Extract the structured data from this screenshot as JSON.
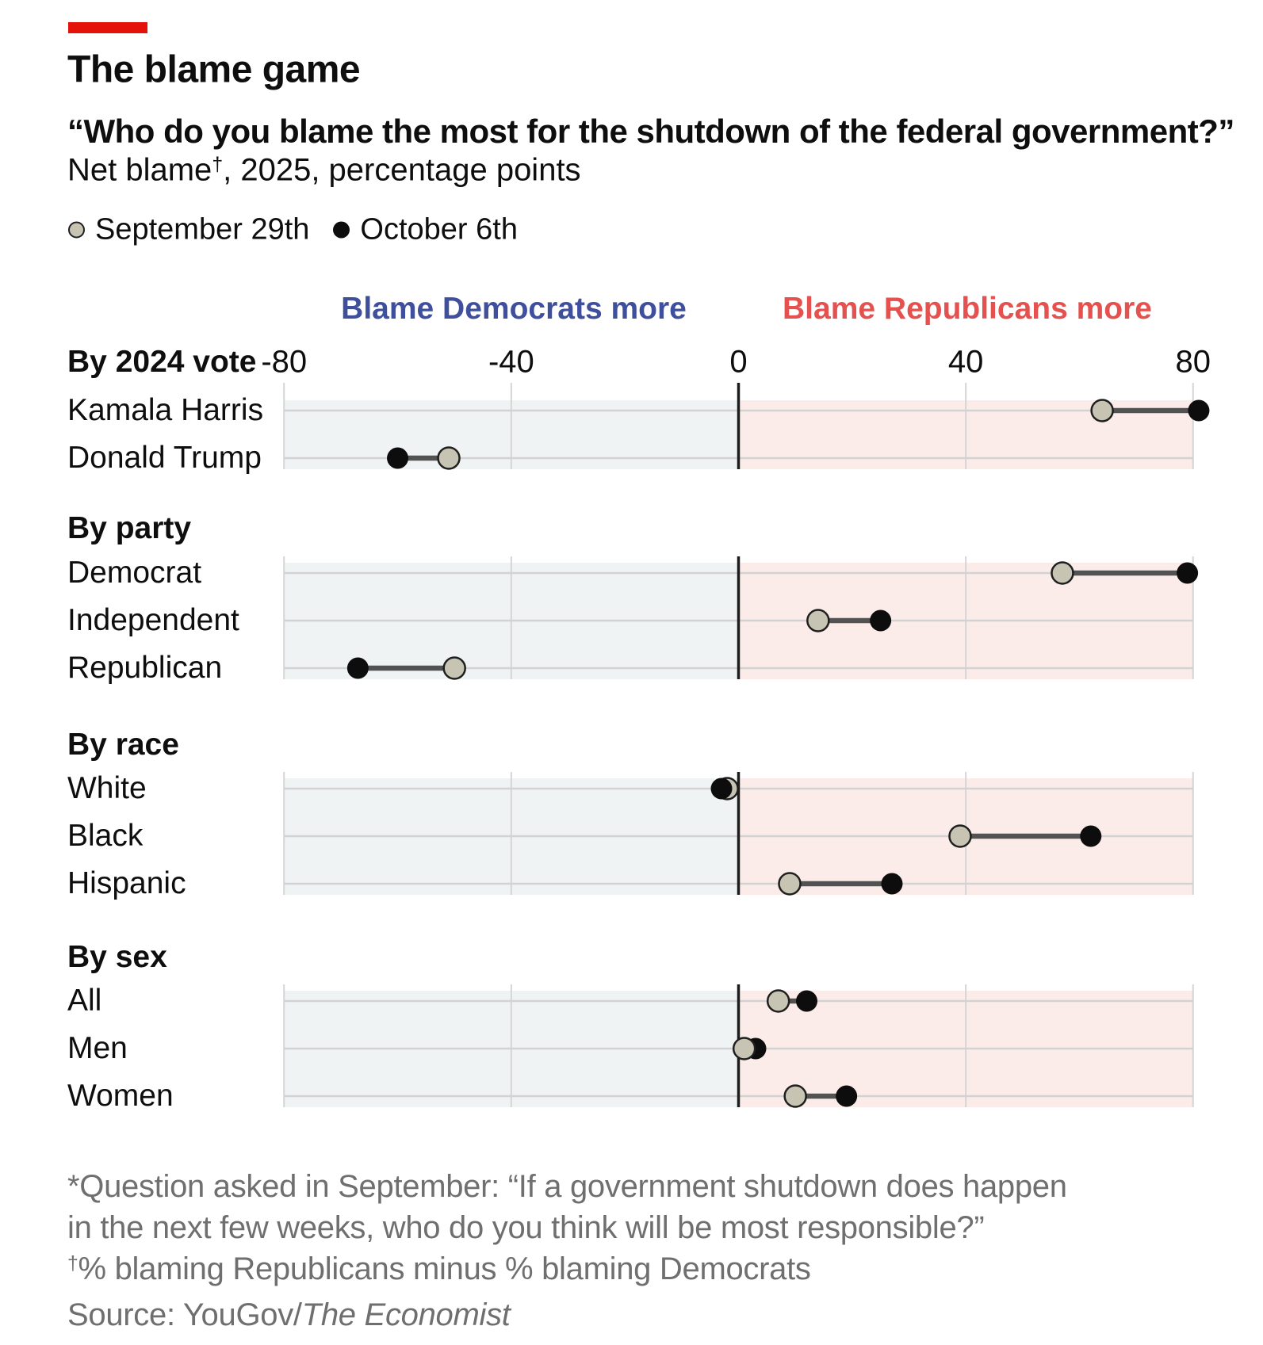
{
  "header": {
    "title": "The blame game",
    "subtitle": "“Who do you blame the most for the shutdown of the federal government?”",
    "dek_prefix": "Net blame",
    "dek_dagger": "†",
    "dek_suffix": ", 2025, percentage points"
  },
  "legend": {
    "sep29": {
      "label": "September 29th"
    },
    "oct6": {
      "label": "October 6th"
    }
  },
  "chart_data": {
    "type": "dumbbell",
    "title": "The blame game",
    "subtitle": "“Who do you blame the most for the shutdown of the federal government?” Net blame, 2025, percentage points",
    "series": [
      "September 29th",
      "October 6th"
    ],
    "x_axis": {
      "ticks": [
        -80,
        -40,
        0,
        40,
        80
      ],
      "tick_labels": [
        "-80",
        "-40",
        "0",
        "40",
        "80"
      ],
      "range": [
        -80,
        80
      ],
      "grid": true
    },
    "headers": {
      "left": {
        "label": "Blame Democrats more",
        "color": "#3E4F9E"
      },
      "right": {
        "label": "Blame Republicans more",
        "color": "#E4514E"
      }
    },
    "groups": [
      {
        "heading": "By 2024 vote",
        "rows": [
          {
            "label": "Kamala Harris",
            "sep29": 64,
            "oct6": 81
          },
          {
            "label": "Donald Trump",
            "sep29": -51,
            "oct6": -60
          }
        ]
      },
      {
        "heading": "By party",
        "rows": [
          {
            "label": "Democrat",
            "sep29": 57,
            "oct6": 79
          },
          {
            "label": "Independent",
            "sep29": 14,
            "oct6": 25
          },
          {
            "label": "Republican",
            "sep29": -50,
            "oct6": -67
          }
        ]
      },
      {
        "heading": "By race",
        "rows": [
          {
            "label": "White",
            "sep29": -2,
            "oct6": -3
          },
          {
            "label": "Black",
            "sep29": 39,
            "oct6": 62
          },
          {
            "label": "Hispanic",
            "sep29": 9,
            "oct6": 27
          }
        ]
      },
      {
        "heading": "By sex",
        "rows": [
          {
            "label": "All",
            "sep29": 7,
            "oct6": 12
          },
          {
            "label": "Men",
            "sep29": 1,
            "oct6": 3,
            "sept_on_top": true
          },
          {
            "label": "Women",
            "sep29": 10,
            "oct6": 19
          }
        ]
      }
    ]
  },
  "footnotes": {
    "line1": "*Question asked in September: “If a government shutdown does happen",
    "line2": "in the next few weeks, who do you think will be most responsible?”",
    "dagger": "†",
    "line3": "% blaming Republicans minus % blaming Democrats",
    "source_prefix": "Source: YouGov/",
    "source_italic": "The Economist"
  },
  "colors": {
    "brand_red": "#E3120B",
    "band_left": "#EFF3F4",
    "band_right": "#FBECE9",
    "gridline": "#D5D5D5",
    "row_line": "#D2D2D2",
    "zero_line": "#1C1C1C",
    "connector": "#525252",
    "sep29_fill": "#C8C4B4",
    "sep29_stroke": "#1F1F1F",
    "oct6_fill": "#0D0D0D",
    "footnote_text": "#6F6F6F",
    "text": "#0E0E0E"
  }
}
